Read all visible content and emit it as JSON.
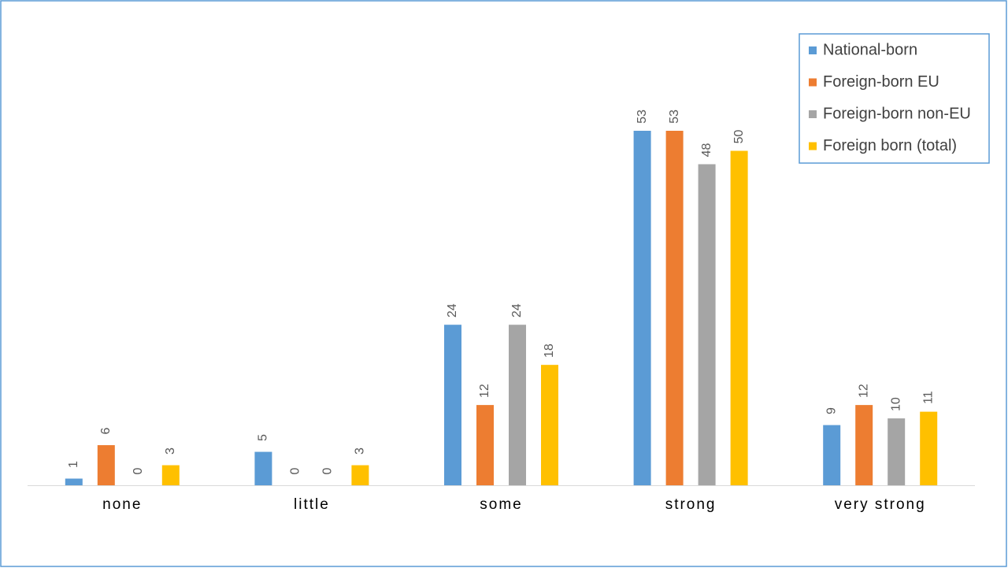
{
  "chart_data": {
    "type": "bar",
    "categories": [
      "none",
      "little",
      "some",
      "strong",
      "very strong"
    ],
    "series": [
      {
        "name": "National-born",
        "color": "#5b9bd5",
        "values": [
          1,
          5,
          24,
          53,
          9
        ]
      },
      {
        "name": "Foreign-born EU",
        "color": "#ed7d31",
        "values": [
          6,
          0,
          12,
          53,
          12
        ]
      },
      {
        "name": "Foreign-born non-EU",
        "color": "#a5a5a5",
        "values": [
          0,
          0,
          24,
          48,
          10
        ]
      },
      {
        "name": "Foreign born (total)",
        "color": "#ffc000",
        "values": [
          3,
          3,
          18,
          50,
          11
        ]
      }
    ],
    "legend": "top-right",
    "data_labels": true
  }
}
